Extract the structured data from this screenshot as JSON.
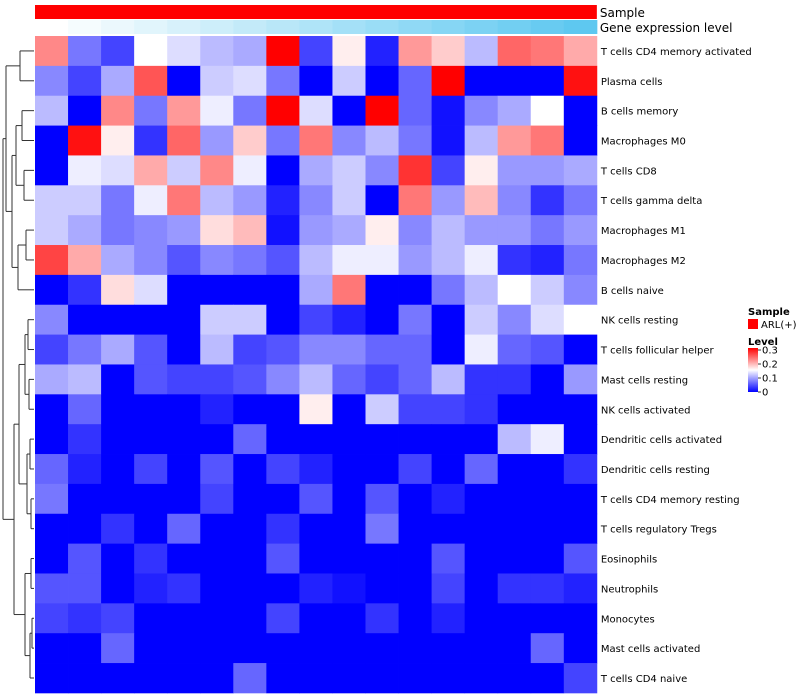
{
  "chart_data": {
    "type": "heatmap",
    "annotations": [
      {
        "name": "Sample",
        "color": "#ff0000"
      },
      {
        "name": "Gene expression level",
        "colors": [
          "#ffffff",
          "#5ec8f0"
        ]
      }
    ],
    "rows": [
      "T cells CD4 memory activated",
      "Plasma cells",
      "B cells memory",
      "Macrophages M0",
      "T cells CD8",
      "T cells gamma delta",
      "Macrophages M1",
      "Macrophages M2",
      "B cells naive",
      "NK cells resting",
      "T cells follicular helper",
      "Mast cells resting",
      "NK cells activated",
      "Dendritic cells activated",
      "Dendritic cells resting",
      "T cells CD4 memory resting",
      "T cells regulatory  Tregs",
      "Eosinophils",
      "Neutrophils",
      "Monocytes",
      "Mast cells activated",
      "T cells CD4 naive"
    ],
    "values": [
      [
        0.22,
        0.07,
        0.04,
        0.15,
        0.13,
        0.11,
        0.1,
        0.3,
        0.04,
        0.16,
        0.02,
        0.21,
        0.18,
        0.11,
        0.24,
        0.23,
        0.2
      ],
      [
        0.08,
        0.04,
        0.1,
        0.25,
        0.0,
        0.12,
        0.13,
        0.07,
        0.0,
        0.12,
        0.0,
        0.06,
        0.3,
        0.0,
        0.0,
        0.0,
        0.29
      ],
      [
        0.11,
        0.0,
        0.22,
        0.07,
        0.21,
        0.14,
        0.07,
        0.3,
        0.13,
        0.0,
        0.3,
        0.06,
        0.01,
        0.08,
        0.1,
        0.15,
        0.0
      ],
      [
        0.0,
        0.29,
        0.16,
        0.03,
        0.24,
        0.09,
        0.18,
        0.07,
        0.23,
        0.08,
        0.11,
        0.07,
        0.01,
        0.11,
        0.21,
        0.23,
        0.0
      ],
      [
        0.0,
        0.14,
        0.13,
        0.2,
        0.12,
        0.22,
        0.14,
        0.0,
        0.1,
        0.12,
        0.08,
        0.27,
        0.04,
        0.16,
        0.09,
        0.09,
        0.1
      ],
      [
        0.12,
        0.12,
        0.07,
        0.14,
        0.23,
        0.11,
        0.09,
        0.02,
        0.08,
        0.12,
        0.0,
        0.23,
        0.09,
        0.19,
        0.08,
        0.03,
        0.07
      ],
      [
        0.12,
        0.1,
        0.07,
        0.08,
        0.09,
        0.17,
        0.19,
        0.01,
        0.09,
        0.1,
        0.16,
        0.08,
        0.11,
        0.09,
        0.09,
        0.07,
        0.09
      ],
      [
        0.26,
        0.2,
        0.1,
        0.08,
        0.05,
        0.08,
        0.07,
        0.05,
        0.11,
        0.14,
        0.14,
        0.09,
        0.11,
        0.14,
        0.03,
        0.02,
        0.07
      ],
      [
        0.0,
        0.03,
        0.17,
        0.13,
        0.0,
        0.0,
        0.0,
        0.0,
        0.1,
        0.23,
        0.0,
        0.0,
        0.07,
        0.11,
        0.15,
        0.12,
        0.08
      ],
      [
        0.08,
        0.0,
        0.0,
        0.0,
        0.0,
        0.12,
        0.12,
        0.0,
        0.04,
        0.02,
        0.0,
        0.07,
        0.0,
        0.12,
        0.08,
        0.13,
        0.15
      ],
      [
        0.04,
        0.07,
        0.1,
        0.05,
        0.0,
        0.11,
        0.04,
        0.05,
        0.08,
        0.08,
        0.06,
        0.06,
        0.0,
        0.14,
        0.06,
        0.05,
        0.0
      ],
      [
        0.1,
        0.11,
        0.0,
        0.05,
        0.04,
        0.04,
        0.05,
        0.08,
        0.11,
        0.06,
        0.04,
        0.06,
        0.11,
        0.03,
        0.03,
        0.0,
        0.09
      ],
      [
        0.0,
        0.06,
        0.0,
        0.0,
        0.0,
        0.02,
        0.0,
        0.0,
        0.16,
        0.0,
        0.12,
        0.04,
        0.04,
        0.03,
        0.0,
        0.0,
        0.0
      ],
      [
        0.0,
        0.03,
        0.0,
        0.0,
        0.0,
        0.0,
        0.06,
        0.0,
        0.0,
        0.0,
        0.0,
        0.0,
        0.0,
        0.0,
        0.11,
        0.14,
        0.0
      ],
      [
        0.06,
        0.02,
        0.0,
        0.04,
        0.0,
        0.05,
        0.0,
        0.04,
        0.02,
        0.0,
        0.0,
        0.04,
        0.0,
        0.06,
        0.0,
        0.0,
        0.03
      ],
      [
        0.07,
        0.0,
        0.0,
        0.0,
        0.0,
        0.04,
        0.0,
        0.0,
        0.05,
        0.0,
        0.05,
        0.0,
        0.02,
        0.0,
        0.0,
        0.0,
        0.0
      ],
      [
        0.0,
        0.0,
        0.03,
        0.0,
        0.06,
        0.0,
        0.0,
        0.03,
        0.0,
        0.0,
        0.07,
        0.0,
        0.0,
        0.0,
        0.0,
        0.0,
        0.0
      ],
      [
        0.0,
        0.05,
        0.0,
        0.03,
        0.0,
        0.0,
        0.0,
        0.05,
        0.0,
        0.0,
        0.0,
        0.0,
        0.05,
        0.0,
        0.0,
        0.0,
        0.05
      ],
      [
        0.05,
        0.05,
        0.0,
        0.02,
        0.03,
        0.0,
        0.0,
        0.0,
        0.02,
        0.01,
        0.0,
        0.0,
        0.04,
        0.0,
        0.03,
        0.03,
        0.02
      ],
      [
        0.04,
        0.03,
        0.04,
        0.0,
        0.0,
        0.0,
        0.0,
        0.04,
        0.0,
        0.0,
        0.03,
        0.0,
        0.02,
        0.0,
        0.0,
        0.0,
        0.0
      ],
      [
        0.0,
        0.0,
        0.06,
        0.0,
        0.0,
        0.0,
        0.0,
        0.0,
        0.0,
        0.0,
        0.0,
        0.0,
        0.0,
        0.0,
        0.0,
        0.06,
        0.0
      ],
      [
        0.0,
        0.0,
        0.0,
        0.0,
        0.0,
        0.0,
        0.06,
        0.0,
        0.0,
        0.0,
        0.0,
        0.0,
        0.0,
        0.0,
        0.0,
        0.0,
        0.04
      ]
    ],
    "color_scale": {
      "min": 0,
      "max": 0.3,
      "low": "#0000ff",
      "mid": "#ffffff",
      "high": "#ff0000"
    },
    "legend": {
      "sample_title": "Sample",
      "sample_item": "ARL(+)",
      "level_title": "Level",
      "ticks": [
        "0.3",
        "0.2",
        "0.1",
        "0"
      ],
      "placement": "right"
    },
    "dendrogram": "rows"
  }
}
